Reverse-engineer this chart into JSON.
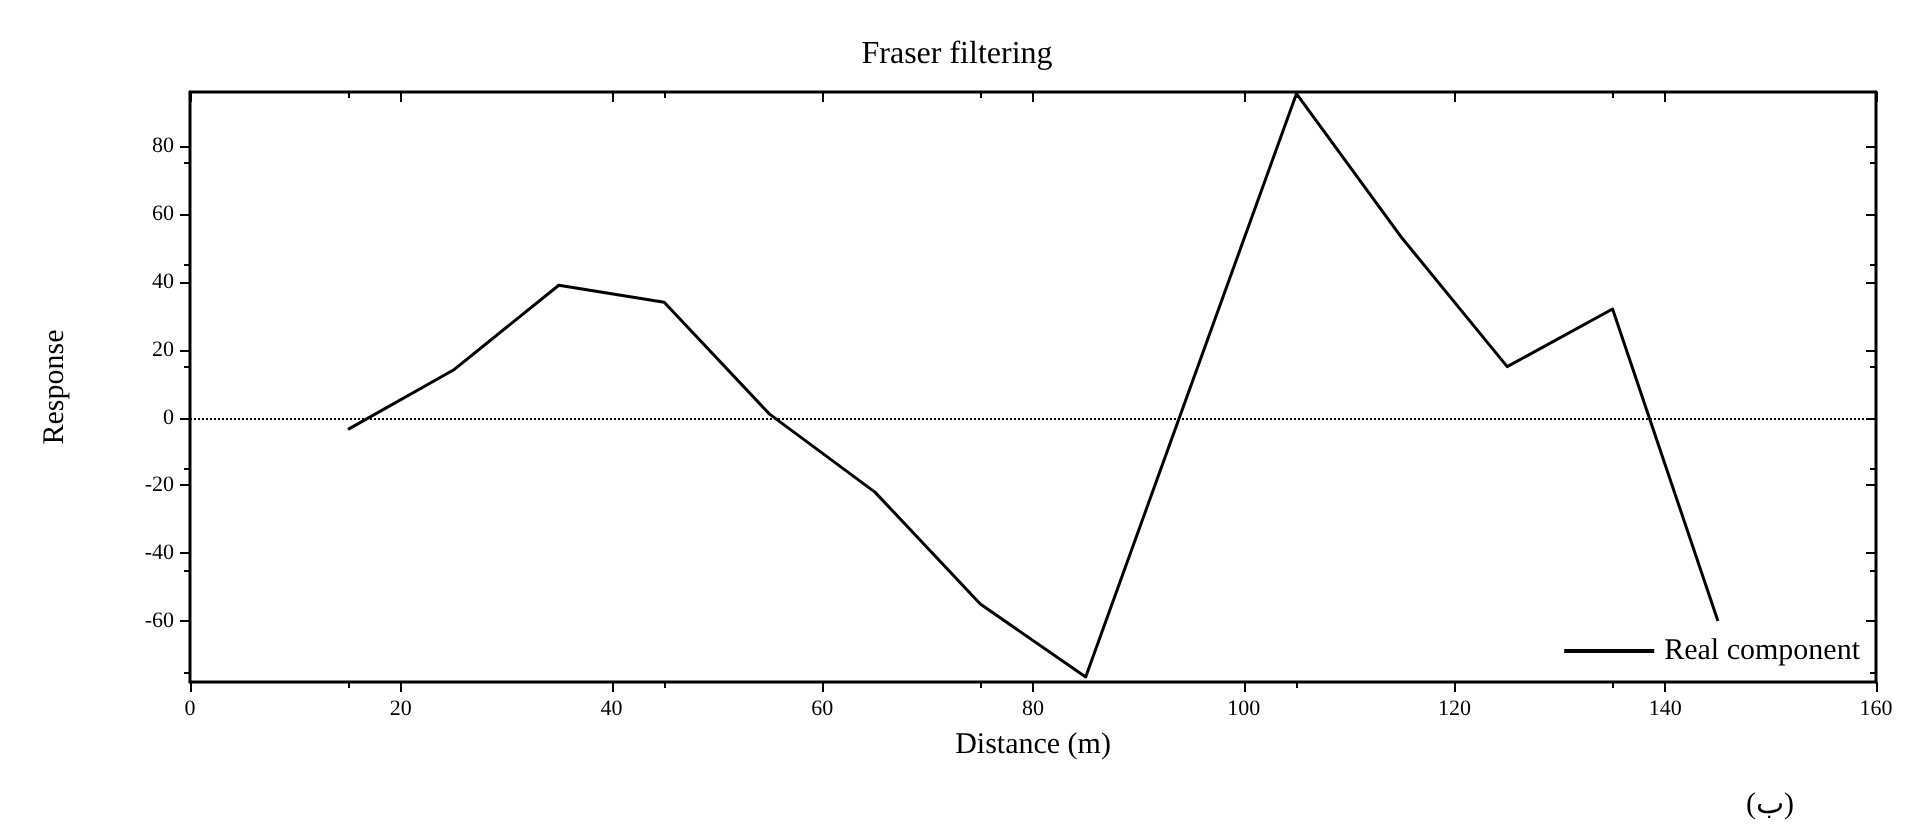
{
  "chart_data": {
    "type": "line",
    "title": "Fraser filtering",
    "xlabel": "Distance (m)",
    "ylabel": "Response",
    "x": [
      15,
      25,
      35,
      45,
      55,
      65,
      75,
      85,
      105,
      115,
      125,
      135,
      145
    ],
    "series": [
      {
        "name": "Real component",
        "color": "#000000",
        "values": [
          -3.5,
          14,
          39,
          34,
          1,
          -22,
          -55,
          -76.5,
          95.5,
          53,
          15,
          32,
          -60
        ]
      }
    ],
    "xlim": [
      0,
      160
    ],
    "xticks": [
      0,
      20,
      40,
      60,
      80,
      100,
      120,
      140,
      160
    ],
    "ylim": [
      -78,
      96
    ],
    "yticks": [
      -60,
      -40,
      -20,
      0,
      20,
      40,
      60,
      80
    ],
    "ref_lines": [
      {
        "axis": "y",
        "value": 0,
        "line_style": "dotted",
        "color": "#000000"
      }
    ],
    "legend": "bottom right",
    "grid": false,
    "marker": "none",
    "line_style": "solid",
    "annotations": [
      "(ب)"
    ]
  }
}
